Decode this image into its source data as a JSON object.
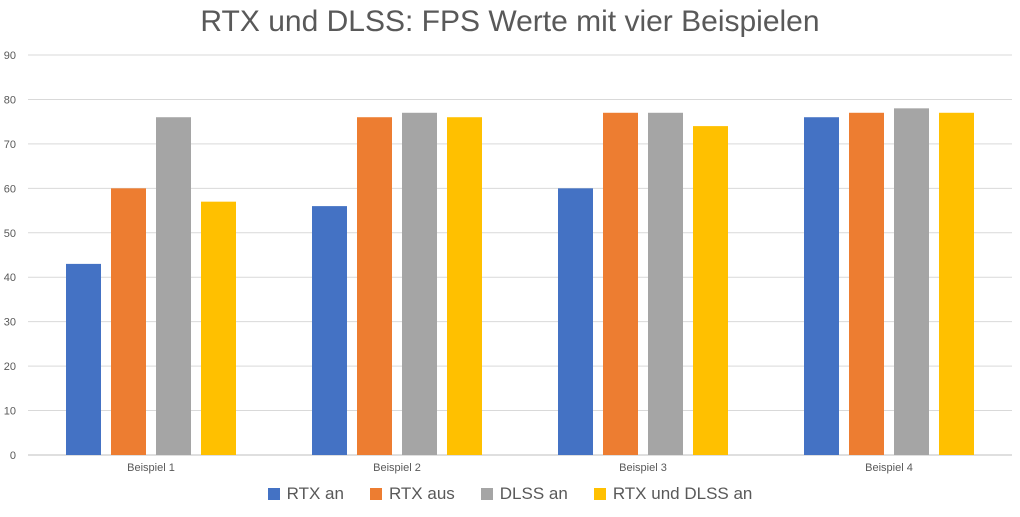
{
  "chart_data": {
    "type": "bar",
    "title": "RTX und DLSS: FPS Werte mit vier Beispielen",
    "categories": [
      "Beispiel 1",
      "Beispiel 2",
      "Beispiel 3",
      "Beispiel 4"
    ],
    "series": [
      {
        "name": "RTX an",
        "color": "#4472c4",
        "values": [
          43,
          56,
          60,
          76
        ]
      },
      {
        "name": "RTX aus",
        "color": "#ed7d31",
        "values": [
          60,
          76,
          77,
          77
        ]
      },
      {
        "name": "DLSS an",
        "color": "#a5a5a5",
        "values": [
          76,
          77,
          77,
          78
        ]
      },
      {
        "name": "RTX und DLSS an",
        "color": "#ffc000",
        "values": [
          57,
          76,
          74,
          77
        ]
      }
    ],
    "ylim": [
      0,
      90
    ],
    "yticks": [
      0,
      10,
      20,
      30,
      40,
      50,
      60,
      70,
      80,
      90
    ],
    "grid": true,
    "legend_position": "bottom"
  }
}
